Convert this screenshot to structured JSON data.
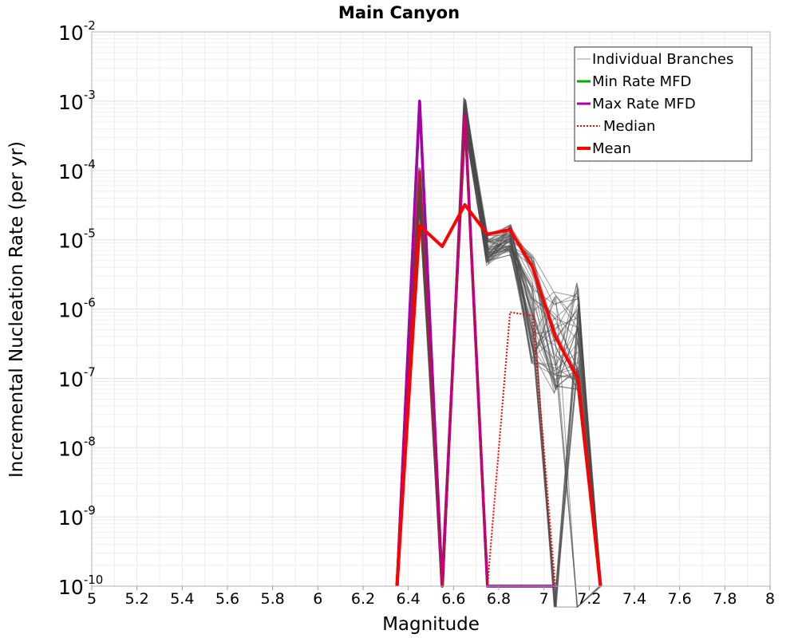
{
  "chart_data": {
    "type": "line",
    "title": "Main Canyon",
    "xlabel": "Magnitude",
    "ylabel": "Incremental Nucleation Rate (per yr)",
    "xlim": [
      5,
      8
    ],
    "ylim": [
      1e-10,
      0.01
    ],
    "y_scale": "log",
    "grid": true,
    "legend_position": "top-right",
    "x_ticks": [
      "5",
      "5.2",
      "5.4",
      "5.6",
      "5.8",
      "6",
      "6.2",
      "6.4",
      "6.6",
      "6.8",
      "7",
      "7.2",
      "7.4",
      "7.6",
      "7.8",
      "8"
    ],
    "y_ticks": [
      {
        "base": "10",
        "exp": "-10"
      },
      {
        "base": "10",
        "exp": "-9"
      },
      {
        "base": "10",
        "exp": "-8"
      },
      {
        "base": "10",
        "exp": "-7"
      },
      {
        "base": "10",
        "exp": "-6"
      },
      {
        "base": "10",
        "exp": "-5"
      },
      {
        "base": "10",
        "exp": "-4"
      },
      {
        "base": "10",
        "exp": "-3"
      },
      {
        "base": "10",
        "exp": "-2"
      }
    ],
    "series": [
      {
        "name": "Individual Branches",
        "color": "#555555",
        "style": "thin-bundle",
        "x": [
          6.35,
          6.45,
          6.55,
          6.65,
          6.75,
          6.85,
          6.95,
          7.05,
          7.15,
          7.25
        ],
        "values": [
          1e-10,
          7e-05,
          1e-10,
          0.0007,
          7e-06,
          1e-05,
          1e-06,
          3e-07,
          4e-07,
          1e-10
        ]
      },
      {
        "name": "Min Rate MFD",
        "color": "#00aa00",
        "x": [
          6.35,
          6.45,
          6.55,
          6.65,
          6.75,
          6.85,
          6.95,
          7.05
        ],
        "values": [
          1e-10,
          0.001,
          1e-10,
          0.00065,
          1e-10,
          1e-10,
          1e-10,
          1e-10
        ]
      },
      {
        "name": "Max Rate MFD",
        "color": "#aa00aa",
        "x": [
          6.35,
          6.45,
          6.55,
          6.65,
          6.75,
          6.85,
          6.95,
          7.05
        ],
        "values": [
          1e-10,
          0.001,
          1e-10,
          0.00065,
          1e-10,
          1e-10,
          1e-10,
          1e-10
        ]
      },
      {
        "name": "Median",
        "color": "#ff0000",
        "dashed": true,
        "x": [
          6.35,
          6.45,
          6.55,
          6.65,
          6.75,
          6.85,
          6.95,
          7.05
        ],
        "values": [
          1e-10,
          0.0001,
          1e-10,
          0.0006,
          1e-10,
          9e-07,
          8e-07,
          1e-10
        ]
      },
      {
        "name": "Mean",
        "color": "#ff0000",
        "x": [
          6.35,
          6.45,
          6.55,
          6.65,
          6.75,
          6.85,
          6.95,
          7.05,
          7.15,
          7.25
        ],
        "values": [
          1e-10,
          1.6e-05,
          8e-06,
          3.2e-05,
          1.2e-05,
          1.4e-05,
          4e-06,
          4e-07,
          1e-07,
          1e-10
        ]
      }
    ]
  }
}
